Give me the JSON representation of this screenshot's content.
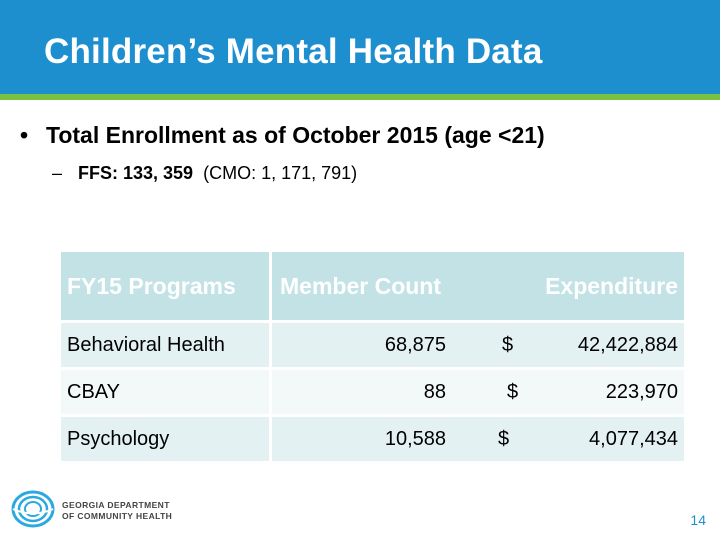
{
  "title": "Children’s Mental Health Data",
  "bullets": {
    "main": "Total Enrollment as of October 2015 (age <21)",
    "sub_ffs": "FFS: 133, 359",
    "sub_cmo": "(CMO: 1, 171, 791)"
  },
  "table": {
    "headers": {
      "programs": "FY15 Programs",
      "member_count": "Member Count",
      "expenditure": "Expenditure"
    },
    "rows": [
      {
        "program": "Behavioral Health",
        "count": "68,875",
        "currency": "$",
        "amount": "42,422,884"
      },
      {
        "program": "CBAY",
        "count": "88",
        "currency": "$",
        "amount": "223,970"
      },
      {
        "program": "Psychology",
        "count": "10,588",
        "currency": "$",
        "amount": "4,077,434"
      }
    ]
  },
  "logo": {
    "line1": "GEORGIA DEPARTMENT",
    "line2": "OF COMMUNITY HEALTH"
  },
  "page_number": "14",
  "colors": {
    "title_bar": "#1e8fce",
    "accent_rule": "#7ac142",
    "header_fill": "#c2e2e6"
  }
}
